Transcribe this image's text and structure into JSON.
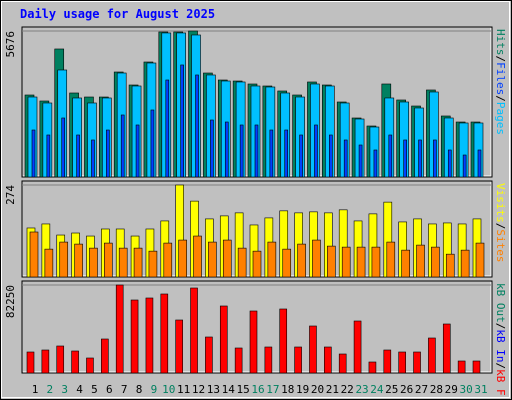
{
  "title": "Daily usage for August 2025",
  "legend_separator": "/",
  "chart_data": [
    {
      "type": "bar",
      "ylim": [
        0,
        5676
      ],
      "yticks": [
        5676
      ],
      "grid": true,
      "series": [
        {
          "name": "Hits",
          "color": "#008060",
          "values": [
            3188,
            2955,
            4977,
            3266,
            3110,
            3110,
            4082,
            3577,
            4471,
            5638,
            5638,
            5676,
            4043,
            3771,
            3732,
            3616,
            3538,
            3344,
            3188,
            3694,
            3577,
            2916,
            2294,
            1983,
            3616,
            2994,
            2760,
            3383,
            2372,
            2138,
            2138
          ]
        },
        {
          "name": "Files",
          "color": "#0040ff",
          "values": [
            1827,
            1633,
            2294,
            1633,
            1439,
            1827,
            2411,
            2022,
            2605,
            3771,
            4355,
            3966,
            2216,
            2138,
            2022,
            2022,
            1827,
            1827,
            1633,
            2022,
            1633,
            1439,
            1244,
            1050,
            1633,
            1439,
            1439,
            1439,
            1050,
            855,
            1050
          ]
        },
        {
          "name": "Pages",
          "color": "#00c0ff",
          "values": [
            3110,
            2877,
            4160,
            3072,
            2877,
            3072,
            4043,
            3538,
            4432,
            5600,
            5600,
            5521,
            3966,
            3732,
            3694,
            3538,
            3499,
            3266,
            3110,
            3616,
            3538,
            2877,
            2255,
            1944,
            3072,
            2916,
            2683,
            3305,
            2294,
            2100,
            2100
          ]
        }
      ]
    },
    {
      "type": "bar",
      "ylim": [
        0,
        274
      ],
      "yticks": [
        274
      ],
      "grid": true,
      "series": [
        {
          "name": "Visits",
          "color": "#ffff00",
          "values": [
            146,
            158,
            125,
            131,
            122,
            143,
            143,
            122,
            143,
            167,
            274,
            226,
            173,
            182,
            191,
            155,
            176,
            197,
            191,
            194,
            191,
            200,
            167,
            188,
            223,
            164,
            173,
            158,
            161,
            158,
            173
          ]
        },
        {
          "name": "Sites",
          "color": "#ff8000",
          "values": [
            134,
            83,
            104,
            98,
            86,
            101,
            86,
            86,
            77,
            101,
            110,
            122,
            104,
            110,
            86,
            77,
            104,
            83,
            98,
            110,
            92,
            89,
            89,
            89,
            104,
            80,
            95,
            89,
            68,
            80,
            101
          ]
        }
      ]
    },
    {
      "type": "bar",
      "ylim": [
        0,
        82250
      ],
      "yticks": [
        82250
      ],
      "grid": true,
      "legend_more": [
        {
          "name": "kB Out",
          "color": "#008060"
        },
        {
          "name": "kB In",
          "color": "#0000ff"
        }
      ],
      "series": [
        {
          "name": "kB F",
          "color": "#ff0000",
          "values": [
            19629,
            21498,
            25237,
            20563,
            14020,
            31780,
            82250,
            68233,
            70102,
            73841,
            49539,
            79450,
            33649,
            62625,
            23368,
            57951,
            24302,
            59821,
            24302,
            43931,
            24302,
            17759,
            48604,
            10282,
            21498,
            19629,
            19629,
            32715,
            45800,
            11216,
            11216
          ]
        }
      ],
      "categories": [
        "1",
        "2",
        "3",
        "4",
        "5",
        "6",
        "7",
        "8",
        "9",
        "10",
        "11",
        "12",
        "13",
        "14",
        "15",
        "16",
        "17",
        "18",
        "19",
        "20",
        "21",
        "22",
        "23",
        "24",
        "25",
        "26",
        "27",
        "28",
        "29",
        "30",
        "31"
      ],
      "category_colors": [
        "#000000",
        "#008060",
        "#008060",
        "#000000",
        "#000000",
        "#000000",
        "#000000",
        "#000000",
        "#008060",
        "#008060",
        "#000000",
        "#000000",
        "#000000",
        "#000000",
        "#000000",
        "#008060",
        "#008060",
        "#000000",
        "#000000",
        "#000000",
        "#000000",
        "#000000",
        "#008060",
        "#008060",
        "#000000",
        "#000000",
        "#000000",
        "#000000",
        "#000000",
        "#008060",
        "#008060"
      ]
    }
  ]
}
